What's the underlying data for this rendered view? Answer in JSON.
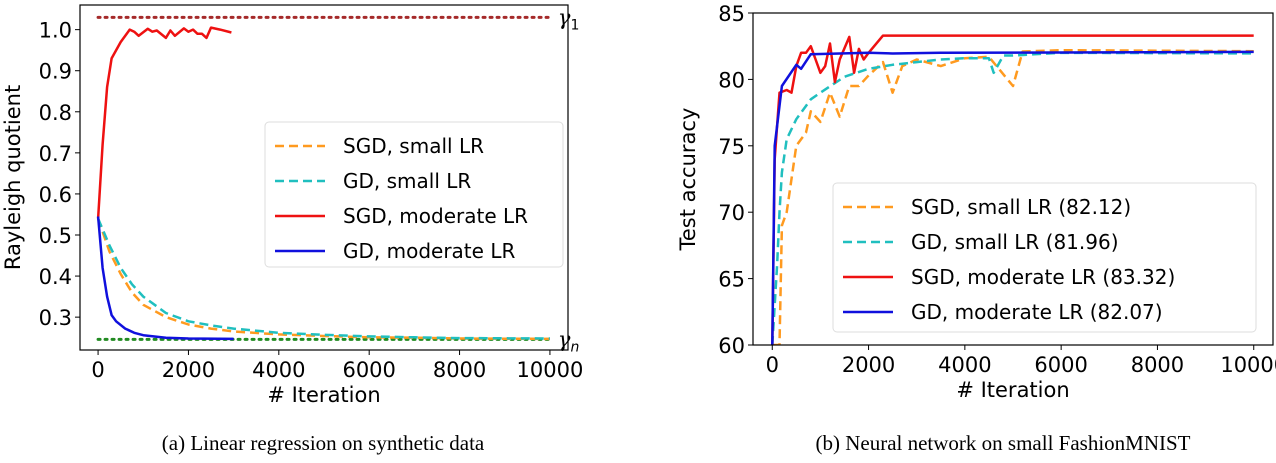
{
  "chart_data": [
    {
      "type": "line",
      "caption": "(a) Linear regression on synthetic data",
      "xlabel": "# Iteration",
      "ylabel": "Rayleigh quotient",
      "xlim": [
        -400,
        10400
      ],
      "ylim": [
        0.22,
        1.06
      ],
      "xticks": [
        0,
        2000,
        4000,
        6000,
        8000,
        10000
      ],
      "yticks": [
        0.3,
        0.4,
        0.5,
        0.6,
        0.7,
        0.8,
        0.9,
        1.0
      ],
      "ytick_labels": [
        "0.3",
        "0.4",
        "0.5",
        "0.6",
        "0.7",
        "0.8",
        "0.9",
        "1.0"
      ],
      "legend_position": "center-right",
      "reference_lines": [
        {
          "label": "γ1",
          "y": 1.03,
          "color": "#a52a2a",
          "style": "dotted"
        },
        {
          "label": "γn",
          "y": 0.246,
          "color": "#228b22",
          "style": "dotted"
        }
      ],
      "series": [
        {
          "name": "SGD, small LR",
          "color": "#ff9a1f",
          "style": "dashed",
          "points": [
            [
              0,
              0.54
            ],
            [
              250,
              0.46
            ],
            [
              500,
              0.405
            ],
            [
              750,
              0.36
            ],
            [
              1000,
              0.33
            ],
            [
              1500,
              0.3
            ],
            [
              2000,
              0.282
            ],
            [
              2500,
              0.272
            ],
            [
              3000,
              0.265
            ],
            [
              4000,
              0.258
            ],
            [
              5000,
              0.254
            ],
            [
              6000,
              0.251
            ],
            [
              7000,
              0.25
            ],
            [
              8000,
              0.248
            ],
            [
              10000,
              0.247
            ]
          ]
        },
        {
          "name": "GD, small LR",
          "color": "#20bfbf",
          "style": "dashed",
          "points": [
            [
              0,
              0.54
            ],
            [
              250,
              0.475
            ],
            [
              500,
              0.42
            ],
            [
              750,
              0.38
            ],
            [
              1000,
              0.35
            ],
            [
              1500,
              0.31
            ],
            [
              2000,
              0.29
            ],
            [
              2500,
              0.28
            ],
            [
              3000,
              0.272
            ],
            [
              4000,
              0.262
            ],
            [
              5000,
              0.257
            ],
            [
              6000,
              0.253
            ],
            [
              7000,
              0.251
            ],
            [
              8000,
              0.249
            ],
            [
              10000,
              0.248
            ]
          ]
        },
        {
          "name": "SGD, moderate LR",
          "color": "#ee1111",
          "style": "solid",
          "points": [
            [
              0,
              0.54
            ],
            [
              100,
              0.72
            ],
            [
              200,
              0.86
            ],
            [
              300,
              0.93
            ],
            [
              500,
              0.97
            ],
            [
              700,
              1.0
            ],
            [
              800,
              0.995
            ],
            [
              900,
              0.985
            ],
            [
              1100,
              1.002
            ],
            [
              1200,
              0.995
            ],
            [
              1300,
              0.998
            ],
            [
              1500,
              0.98
            ],
            [
              1600,
              0.998
            ],
            [
              1700,
              0.985
            ],
            [
              1900,
              1.003
            ],
            [
              2000,
              0.995
            ],
            [
              2100,
              1.0
            ],
            [
              2200,
              0.99
            ],
            [
              2300,
              0.99
            ],
            [
              2400,
              0.98
            ],
            [
              2500,
              1.005
            ],
            [
              2700,
              1.0
            ],
            [
              2950,
              0.993
            ]
          ]
        },
        {
          "name": "GD, moderate LR",
          "color": "#1010dd",
          "style": "solid",
          "points": [
            [
              0,
              0.545
            ],
            [
              100,
              0.42
            ],
            [
              200,
              0.35
            ],
            [
              300,
              0.305
            ],
            [
              400,
              0.29
            ],
            [
              600,
              0.272
            ],
            [
              800,
              0.262
            ],
            [
              1000,
              0.256
            ],
            [
              1500,
              0.25
            ],
            [
              2000,
              0.248
            ],
            [
              3000,
              0.247
            ]
          ]
        }
      ]
    },
    {
      "type": "line",
      "caption": "(b) Neural network on small FashionMNIST",
      "xlabel": "# Iteration",
      "ylabel": "Test accuracy",
      "xlim": [
        -400,
        10400
      ],
      "ylim": [
        60,
        85
      ],
      "xticks": [
        0,
        2000,
        4000,
        6000,
        8000,
        10000
      ],
      "yticks": [
        60,
        65,
        70,
        75,
        80,
        85
      ],
      "ytick_labels": [
        "60",
        "65",
        "70",
        "75",
        "80",
        "85"
      ],
      "legend_position": "lower-right",
      "series": [
        {
          "name": "SGD, small LR (82.12)",
          "color": "#ff9a1f",
          "style": "dashed",
          "points": [
            [
              0,
              60
            ],
            [
              150,
              60
            ],
            [
              200,
              69
            ],
            [
              300,
              70
            ],
            [
              400,
              72.5
            ],
            [
              500,
              75
            ],
            [
              700,
              76
            ],
            [
              800,
              77.6
            ],
            [
              1000,
              76.8
            ],
            [
              1200,
              79
            ],
            [
              1400,
              77.2
            ],
            [
              1600,
              79.5
            ],
            [
              1800,
              79.5
            ],
            [
              2000,
              80.3
            ],
            [
              2300,
              81.3
            ],
            [
              2500,
              79
            ],
            [
              2700,
              81
            ],
            [
              3000,
              81.5
            ],
            [
              3500,
              81
            ],
            [
              4000,
              81.6
            ],
            [
              4500,
              81.7
            ],
            [
              5000,
              79.5
            ],
            [
              5200,
              82.1
            ],
            [
              6000,
              82.2
            ],
            [
              10000,
              82.12
            ]
          ]
        },
        {
          "name": "GD, small LR (81.96)",
          "color": "#20bfbf",
          "style": "dashed",
          "points": [
            [
              0,
              60
            ],
            [
              100,
              66
            ],
            [
              150,
              70
            ],
            [
              200,
              73
            ],
            [
              300,
              75.5
            ],
            [
              500,
              77
            ],
            [
              800,
              78.5
            ],
            [
              1000,
              79
            ],
            [
              1500,
              80.2
            ],
            [
              2000,
              80.8
            ],
            [
              2500,
              81.1
            ],
            [
              3000,
              81.3
            ],
            [
              3500,
              81.5
            ],
            [
              4000,
              81.6
            ],
            [
              4500,
              81.6
            ],
            [
              4600,
              80.5
            ],
            [
              4800,
              81.8
            ],
            [
              5000,
              81.8
            ],
            [
              6000,
              82
            ],
            [
              10000,
              81.96
            ]
          ]
        },
        {
          "name": "SGD, moderate LR (83.32)",
          "color": "#ee1111",
          "style": "solid",
          "points": [
            [
              0,
              60
            ],
            [
              50,
              74
            ],
            [
              150,
              79
            ],
            [
              300,
              79.2
            ],
            [
              400,
              79
            ],
            [
              500,
              81
            ],
            [
              600,
              82
            ],
            [
              700,
              82
            ],
            [
              800,
              82.5
            ],
            [
              900,
              81.5
            ],
            [
              1000,
              80.5
            ],
            [
              1100,
              81
            ],
            [
              1200,
              82.7
            ],
            [
              1300,
              79.8
            ],
            [
              1400,
              81.5
            ],
            [
              1600,
              83.2
            ],
            [
              1700,
              80.5
            ],
            [
              1800,
              82.3
            ],
            [
              1900,
              81.5
            ],
            [
              2000,
              82
            ],
            [
              2300,
              83.3
            ],
            [
              3000,
              83.3
            ],
            [
              10000,
              83.3
            ]
          ]
        },
        {
          "name": "GD, moderate LR (82.07)",
          "color": "#1010dd",
          "style": "solid",
          "points": [
            [
              0,
              60
            ],
            [
              50,
              75
            ],
            [
              200,
              79.5
            ],
            [
              500,
              81.1
            ],
            [
              600,
              80.8
            ],
            [
              800,
              81.9
            ],
            [
              2000,
              82
            ],
            [
              2500,
              81.95
            ],
            [
              3500,
              82
            ],
            [
              10000,
              82.07
            ]
          ]
        }
      ]
    }
  ]
}
